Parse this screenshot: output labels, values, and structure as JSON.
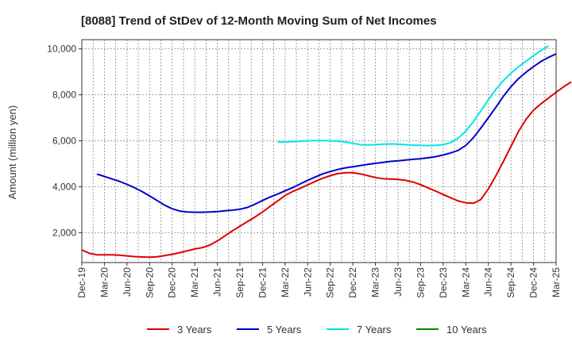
{
  "chart_data": {
    "type": "line",
    "title": "[8088]  Trend of StDev of 12-Month Moving Sum of Net Incomes",
    "xlabel": "",
    "ylabel": "Amount (million yen)",
    "ylim": [
      700,
      10400
    ],
    "yticks": [
      2000,
      4000,
      6000,
      8000,
      10000
    ],
    "ytick_labels": [
      "2,000",
      "4,000",
      "6,000",
      "8,000",
      "10,000"
    ],
    "x_start": "2019-12",
    "x_end": "2025-03",
    "xtick_labels": [
      "Dec-19",
      "Mar-20",
      "Jun-20",
      "Sep-20",
      "Dec-20",
      "Mar-21",
      "Jun-21",
      "Sep-21",
      "Dec-21",
      "Mar-22",
      "Jun-22",
      "Sep-22",
      "Dec-22",
      "Mar-23",
      "Jun-23",
      "Sep-23",
      "Dec-23",
      "Mar-24",
      "Jun-24",
      "Sep-24",
      "Dec-24",
      "Mar-25"
    ],
    "grid": true,
    "legend_position": "bottom",
    "series": [
      {
        "name": "3 Years",
        "color": "#dd0000",
        "start": "2019-12",
        "values": [
          1250,
          1100,
          1040,
          1040,
          1040,
          1020,
          990,
          960,
          940,
          930,
          950,
          1000,
          1060,
          1130,
          1210,
          1290,
          1350,
          1460,
          1640,
          1860,
          2080,
          2280,
          2480,
          2680,
          2900,
          3140,
          3380,
          3620,
          3790,
          3930,
          4080,
          4230,
          4370,
          4480,
          4570,
          4610,
          4610,
          4560,
          4480,
          4400,
          4350,
          4330,
          4320,
          4280,
          4200,
          4090,
          3950,
          3810,
          3660,
          3520,
          3380,
          3300,
          3280,
          3440,
          3900,
          4480,
          5100,
          5750,
          6400,
          6930,
          7330,
          7610,
          7860,
          8110,
          8350,
          8560
        ]
      },
      {
        "name": "5 Years",
        "color": "#0000cc",
        "start": "2020-02",
        "values": [
          4550,
          4450,
          4340,
          4230,
          4100,
          3960,
          3790,
          3600,
          3400,
          3200,
          3040,
          2940,
          2900,
          2890,
          2890,
          2900,
          2920,
          2950,
          2980,
          3020,
          3100,
          3240,
          3400,
          3550,
          3680,
          3820,
          3960,
          4120,
          4280,
          4420,
          4560,
          4660,
          4750,
          4820,
          4870,
          4920,
          4970,
          5020,
          5060,
          5100,
          5130,
          5160,
          5190,
          5220,
          5260,
          5310,
          5380,
          5470,
          5580,
          5800,
          6130,
          6550,
          7000,
          7460,
          7940,
          8350,
          8700,
          8980,
          9230,
          9450,
          9630,
          9780
        ]
      },
      {
        "name": "7 Years",
        "color": "#00e5e5",
        "start": "2022-02",
        "values": [
          5950,
          5950,
          5960,
          5980,
          6000,
          6010,
          6010,
          6000,
          5980,
          5950,
          5890,
          5830,
          5820,
          5830,
          5850,
          5860,
          5850,
          5830,
          5810,
          5800,
          5790,
          5800,
          5830,
          5920,
          6110,
          6420,
          6830,
          7300,
          7780,
          8240,
          8620,
          8940,
          9220,
          9460,
          9700,
          9930,
          10130
        ]
      },
      {
        "name": "10 Years",
        "color": "#008800",
        "start": "2019-12",
        "values": []
      }
    ]
  }
}
